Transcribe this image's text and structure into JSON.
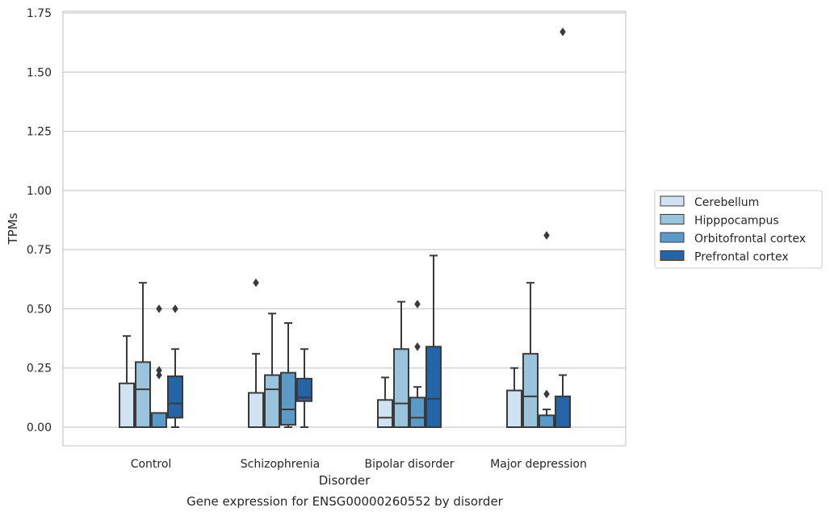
{
  "chart_data": {
    "type": "box",
    "title": "",
    "caption": "Gene expression for ENSG00000260552 by disorder",
    "xlabel": "Disorder",
    "ylabel": "TPMs",
    "ylim": [
      -0.08,
      1.76
    ],
    "yticks": [
      0.0,
      0.25,
      0.5,
      0.75,
      1.0,
      1.25,
      1.5,
      1.75
    ],
    "ytick_labels": [
      "0.00",
      "0.25",
      "0.50",
      "0.75",
      "1.00",
      "1.25",
      "1.50",
      "1.75"
    ],
    "grid": "horizontal",
    "legend_position": "right, outside plot area",
    "categories": [
      "Control",
      "Schizophrenia",
      "Bipolar disorder",
      "Major depression"
    ],
    "series": [
      {
        "name": "Cerebellum",
        "color": "#d1e2f2",
        "boxes": [
          {
            "whislo": 0.0,
            "q1": 0.0,
            "med": 0.0,
            "q3": 0.185,
            "whishi": 0.385,
            "fliers": []
          },
          {
            "whislo": 0.0,
            "q1": 0.0,
            "med": 0.0,
            "q3": 0.145,
            "whishi": 0.31,
            "fliers": [
              0.61
            ]
          },
          {
            "whislo": 0.0,
            "q1": 0.0,
            "med": 0.04,
            "q3": 0.115,
            "whishi": 0.21,
            "fliers": []
          },
          {
            "whislo": 0.0,
            "q1": 0.0,
            "med": 0.0,
            "q3": 0.155,
            "whishi": 0.25,
            "fliers": []
          }
        ]
      },
      {
        "name": "Hipppocampus",
        "color": "#9ac3dd",
        "boxes": [
          {
            "whislo": 0.0,
            "q1": 0.0,
            "med": 0.16,
            "q3": 0.275,
            "whishi": 0.61,
            "fliers": []
          },
          {
            "whislo": 0.0,
            "q1": 0.0,
            "med": 0.16,
            "q3": 0.22,
            "whishi": 0.48,
            "fliers": []
          },
          {
            "whislo": 0.0,
            "q1": 0.0,
            "med": 0.1,
            "q3": 0.33,
            "whishi": 0.53,
            "fliers": []
          },
          {
            "whislo": 0.0,
            "q1": 0.0,
            "med": 0.13,
            "q3": 0.31,
            "whishi": 0.61,
            "fliers": []
          }
        ]
      },
      {
        "name": "Orbitofrontal cortex",
        "color": "#5a9ac9",
        "boxes": [
          {
            "whislo": 0.0,
            "q1": 0.0,
            "med": 0.0,
            "q3": 0.06,
            "whishi": 0.06,
            "fliers": [
              0.5,
              0.24,
              0.22
            ]
          },
          {
            "whislo": 0.0,
            "q1": 0.01,
            "med": 0.075,
            "q3": 0.23,
            "whishi": 0.44,
            "fliers": []
          },
          {
            "whislo": 0.0,
            "q1": 0.0,
            "med": 0.04,
            "q3": 0.125,
            "whishi": 0.17,
            "fliers": [
              0.52,
              0.34
            ]
          },
          {
            "whislo": 0.0,
            "q1": 0.0,
            "med": 0.0,
            "q3": 0.05,
            "whishi": 0.075,
            "fliers": [
              0.81,
              0.14
            ]
          }
        ]
      },
      {
        "name": "Prefrontal cortex",
        "color": "#2465a8",
        "boxes": [
          {
            "whislo": 0.0,
            "q1": 0.04,
            "med": 0.1,
            "q3": 0.215,
            "whishi": 0.33,
            "fliers": [
              0.5
            ]
          },
          {
            "whislo": 0.0,
            "q1": 0.11,
            "med": 0.125,
            "q3": 0.205,
            "whishi": 0.33,
            "fliers": []
          },
          {
            "whislo": 0.0,
            "q1": 0.0,
            "med": 0.12,
            "q3": 0.34,
            "whishi": 0.725,
            "fliers": []
          },
          {
            "whislo": 0.0,
            "q1": 0.0,
            "med": 0.0,
            "q3": 0.13,
            "whishi": 0.22,
            "fliers": [
              1.67
            ]
          }
        ]
      }
    ]
  },
  "colors": {
    "grid": "#cccccc",
    "frame": "#cccccc",
    "edge": "#3a3a3a",
    "text": "#262626"
  }
}
